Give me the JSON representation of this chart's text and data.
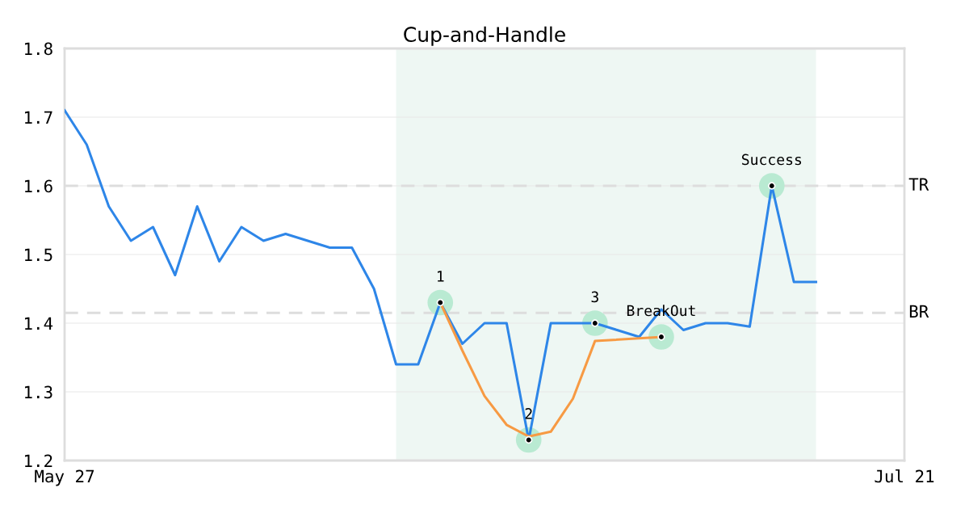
{
  "chart_data": {
    "type": "line",
    "title": "Cup-and-Handle",
    "categories": [
      "May 27",
      null,
      null,
      null,
      null,
      null,
      null,
      null,
      null,
      null,
      null,
      null,
      null,
      null,
      null,
      null,
      null,
      null,
      null,
      null,
      null,
      null,
      null,
      null,
      null,
      null,
      null,
      null,
      null,
      null,
      null,
      null,
      null,
      null,
      null,
      null,
      null,
      null,
      "Jul 21"
    ],
    "series": [
      {
        "color": "#2e86e8",
        "values": [
          1.71,
          1.66,
          1.57,
          1.52,
          1.54,
          1.47,
          1.57,
          1.49,
          1.54,
          1.52,
          1.53,
          1.52,
          1.51,
          1.51,
          1.45,
          1.34,
          1.34,
          1.43,
          1.37,
          1.4,
          1.4,
          1.23,
          1.4,
          1.4,
          1.4,
          1.39,
          1.38,
          1.42,
          1.39,
          1.4,
          1.4,
          1.395,
          1.6,
          1.46,
          1.46,
          null,
          null,
          null,
          null
        ]
      },
      {
        "color": "#f79a43",
        "values": [
          null,
          null,
          null,
          null,
          null,
          null,
          null,
          null,
          null,
          null,
          null,
          null,
          null,
          null,
          null,
          null,
          null,
          1.43,
          1.36,
          1.294,
          1.252,
          1.235,
          1.242,
          1.29,
          1.374,
          null,
          null,
          1.38,
          null,
          null,
          null,
          null,
          null,
          null,
          null,
          null,
          null,
          null,
          null
        ]
      },
      {
        "type": "scatter",
        "color": "#b9ead2",
        "values": [
          null,
          null,
          null,
          null,
          null,
          null,
          null,
          null,
          null,
          null,
          null,
          null,
          null,
          null,
          null,
          null,
          null,
          1.43,
          null,
          null,
          null,
          1.23,
          null,
          null,
          1.4,
          null,
          null,
          1.38,
          null,
          null,
          null,
          null,
          1.6,
          null,
          null,
          null,
          null,
          null,
          null
        ],
        "marker": "circle"
      }
    ],
    "ylim": [
      1.2,
      1.8
    ],
    "yticks": [
      1.2,
      1.3,
      1.4,
      1.5,
      1.6,
      1.7,
      1.8
    ],
    "grid": "y",
    "annotations": [
      {
        "text": "1",
        "y": 1.43
      },
      {
        "text": "2",
        "y": 1.23
      },
      {
        "text": "3",
        "y": 1.4
      },
      {
        "text": "BreakOut",
        "y": 1.38
      },
      {
        "text": "Success",
        "y": 1.6
      }
    ],
    "ref_lines": [
      {
        "axis": "y",
        "value": 1.6,
        "label": "TR",
        "color": "#dddddd",
        "line_style": "dashed"
      },
      {
        "axis": "y",
        "value": 1.415,
        "label": "BR",
        "color": "#dddddd",
        "line_style": "dashed"
      }
    ]
  }
}
